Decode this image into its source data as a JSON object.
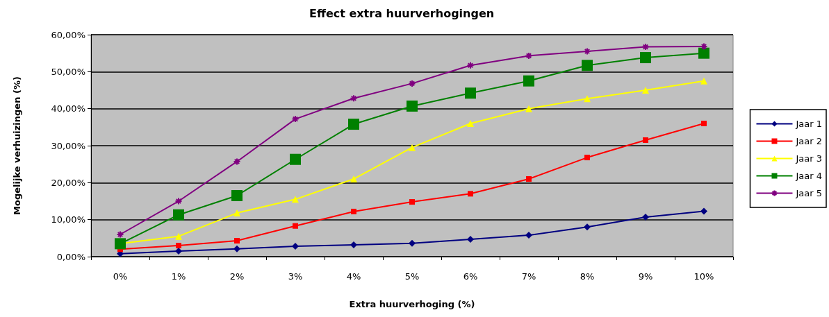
{
  "chart_data": {
    "type": "line",
    "title": "Effect extra huurverhogingen",
    "xlabel": "Extra huurverhoging (%)",
    "ylabel": "Mogelijke verhuizingen (%)",
    "categories": [
      "0%",
      "1%",
      "2%",
      "3%",
      "4%",
      "5%",
      "6%",
      "7%",
      "8%",
      "9%",
      "10%"
    ],
    "ylim": [
      0,
      60
    ],
    "yticks": [
      {
        "value": 0,
        "label": "0,00%"
      },
      {
        "value": 10,
        "label": "10,00%"
      },
      {
        "value": 20,
        "label": "20,00%"
      },
      {
        "value": 30,
        "label": "30,00%"
      },
      {
        "value": 40,
        "label": "40,00%"
      },
      {
        "value": 50,
        "label": "50,00%"
      },
      {
        "value": 60,
        "label": "60,00%"
      }
    ],
    "grid": "y",
    "legend": "right",
    "line_style": "solid",
    "series": [
      {
        "name": "Jaar 1",
        "color": "#000080",
        "marker": "diamond",
        "values": [
          0.8,
          1.5,
          2.1,
          2.8,
          3.2,
          3.6,
          4.7,
          5.8,
          8.0,
          10.7,
          12.3
        ]
      },
      {
        "name": "Jaar 2",
        "color": "#ff0000",
        "marker": "square",
        "values": [
          2.0,
          3.0,
          4.3,
          8.3,
          12.2,
          14.8,
          17.0,
          21.0,
          26.8,
          31.5,
          36.0
        ]
      },
      {
        "name": "Jaar 3",
        "color": "#ffff00",
        "marker": "triangle",
        "values": [
          3.5,
          5.5,
          11.8,
          15.5,
          21.0,
          29.5,
          36.0,
          40.0,
          42.7,
          45.0,
          47.5
        ]
      },
      {
        "name": "Jaar 4",
        "color": "#008000",
        "marker": "square",
        "values": [
          3.5,
          11.3,
          16.5,
          26.3,
          35.8,
          40.7,
          44.2,
          47.5,
          51.7,
          53.8,
          55.0
        ]
      },
      {
        "name": "Jaar 5",
        "color": "#800080",
        "marker": "cross",
        "values": [
          6.0,
          15.0,
          25.7,
          37.2,
          42.8,
          46.8,
          51.7,
          54.3,
          55.5,
          56.7,
          56.8
        ]
      }
    ]
  }
}
